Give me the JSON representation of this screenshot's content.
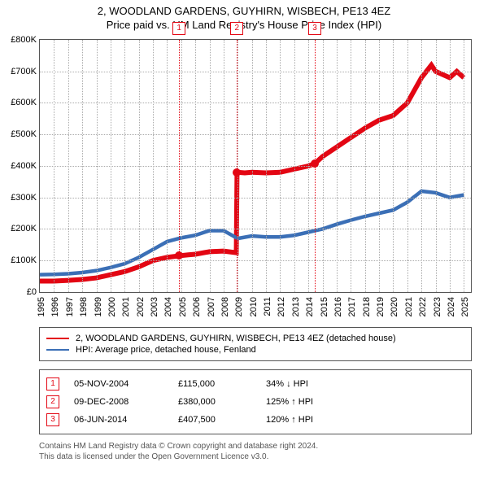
{
  "title": {
    "line1": "2, WOODLAND GARDENS, GUYHIRN, WISBECH, PE13 4EZ",
    "line2": "Price paid vs. HM Land Registry's House Price Index (HPI)"
  },
  "chart": {
    "type": "line",
    "background_color": "#ffffff",
    "grid_color": "#aaaaaa",
    "border_color": "#555555",
    "xlim": [
      1995,
      2025.5
    ],
    "ylim": [
      0,
      800000
    ],
    "yticks": [
      {
        "v": 0,
        "label": "£0"
      },
      {
        "v": 100000,
        "label": "£100K"
      },
      {
        "v": 200000,
        "label": "£200K"
      },
      {
        "v": 300000,
        "label": "£300K"
      },
      {
        "v": 400000,
        "label": "£400K"
      },
      {
        "v": 500000,
        "label": "£500K"
      },
      {
        "v": 600000,
        "label": "£600K"
      },
      {
        "v": 700000,
        "label": "£700K"
      },
      {
        "v": 800000,
        "label": "£800K"
      }
    ],
    "xticks": [
      1995,
      1996,
      1997,
      1998,
      1999,
      2000,
      2001,
      2002,
      2003,
      2004,
      2005,
      2006,
      2007,
      2008,
      2009,
      2010,
      2011,
      2012,
      2013,
      2014,
      2015,
      2016,
      2017,
      2018,
      2019,
      2020,
      2021,
      2022,
      2023,
      2024,
      2025
    ],
    "series": [
      {
        "name": "property",
        "label": "2, WOODLAND GARDENS, GUYHIRN, WISBECH, PE13 4EZ (detached house)",
        "color": "#e30613",
        "line_width": 2,
        "points": [
          [
            1995,
            35000
          ],
          [
            1996,
            35000
          ],
          [
            1997,
            37000
          ],
          [
            1998,
            40000
          ],
          [
            1999,
            45000
          ],
          [
            2000,
            55000
          ],
          [
            2001,
            65000
          ],
          [
            2002,
            80000
          ],
          [
            2003,
            100000
          ],
          [
            2004,
            110000
          ],
          [
            2004.85,
            115000
          ],
          [
            2005.5,
            118000
          ],
          [
            2006,
            120000
          ],
          [
            2007,
            128000
          ],
          [
            2008,
            130000
          ],
          [
            2008.9,
            125000
          ],
          [
            2008.95,
            380000
          ],
          [
            2009.5,
            378000
          ],
          [
            2010,
            380000
          ],
          [
            2011,
            378000
          ],
          [
            2012,
            380000
          ],
          [
            2013,
            390000
          ],
          [
            2014,
            400000
          ],
          [
            2014.45,
            407500
          ],
          [
            2015,
            430000
          ],
          [
            2016,
            460000
          ],
          [
            2017,
            490000
          ],
          [
            2018,
            520000
          ],
          [
            2019,
            545000
          ],
          [
            2020,
            560000
          ],
          [
            2021,
            600000
          ],
          [
            2022,
            680000
          ],
          [
            2022.7,
            720000
          ],
          [
            2023,
            700000
          ],
          [
            2024,
            680000
          ],
          [
            2024.5,
            700000
          ],
          [
            2025,
            680000
          ]
        ]
      },
      {
        "name": "hpi",
        "label": "HPI: Average price, detached house, Fenland",
        "color": "#3b6fb6",
        "line_width": 1.5,
        "points": [
          [
            1995,
            55000
          ],
          [
            1996,
            56000
          ],
          [
            1997,
            58000
          ],
          [
            1998,
            62000
          ],
          [
            1999,
            68000
          ],
          [
            2000,
            78000
          ],
          [
            2001,
            90000
          ],
          [
            2002,
            110000
          ],
          [
            2003,
            135000
          ],
          [
            2004,
            160000
          ],
          [
            2005,
            172000
          ],
          [
            2006,
            180000
          ],
          [
            2007,
            195000
          ],
          [
            2008,
            195000
          ],
          [
            2009,
            170000
          ],
          [
            2010,
            178000
          ],
          [
            2011,
            175000
          ],
          [
            2012,
            175000
          ],
          [
            2013,
            180000
          ],
          [
            2014,
            190000
          ],
          [
            2015,
            200000
          ],
          [
            2016,
            215000
          ],
          [
            2017,
            228000
          ],
          [
            2018,
            240000
          ],
          [
            2019,
            250000
          ],
          [
            2020,
            260000
          ],
          [
            2021,
            285000
          ],
          [
            2022,
            320000
          ],
          [
            2023,
            315000
          ],
          [
            2024,
            300000
          ],
          [
            2025,
            308000
          ]
        ]
      }
    ],
    "sale_markers": [
      {
        "idx": "1",
        "x": 2004.85,
        "y": 115000
      },
      {
        "idx": "2",
        "x": 2008.94,
        "y": 380000
      },
      {
        "idx": "3",
        "x": 2014.45,
        "y": 407500
      }
    ]
  },
  "legend": {
    "items": [
      {
        "color": "#e30613",
        "label": "2, WOODLAND GARDENS, GUYHIRN, WISBECH, PE13 4EZ (detached house)"
      },
      {
        "color": "#3b6fb6",
        "label": "HPI: Average price, detached house, Fenland"
      }
    ]
  },
  "sales": [
    {
      "idx": "1",
      "date": "05-NOV-2004",
      "price": "£115,000",
      "hpi": "34% ↓ HPI"
    },
    {
      "idx": "2",
      "date": "09-DEC-2008",
      "price": "£380,000",
      "hpi": "125% ↑ HPI"
    },
    {
      "idx": "3",
      "date": "06-JUN-2014",
      "price": "£407,500",
      "hpi": "120% ↑ HPI"
    }
  ],
  "footer": {
    "line1": "Contains HM Land Registry data © Crown copyright and database right 2024.",
    "line2": "This data is licensed under the Open Government Licence v3.0."
  }
}
